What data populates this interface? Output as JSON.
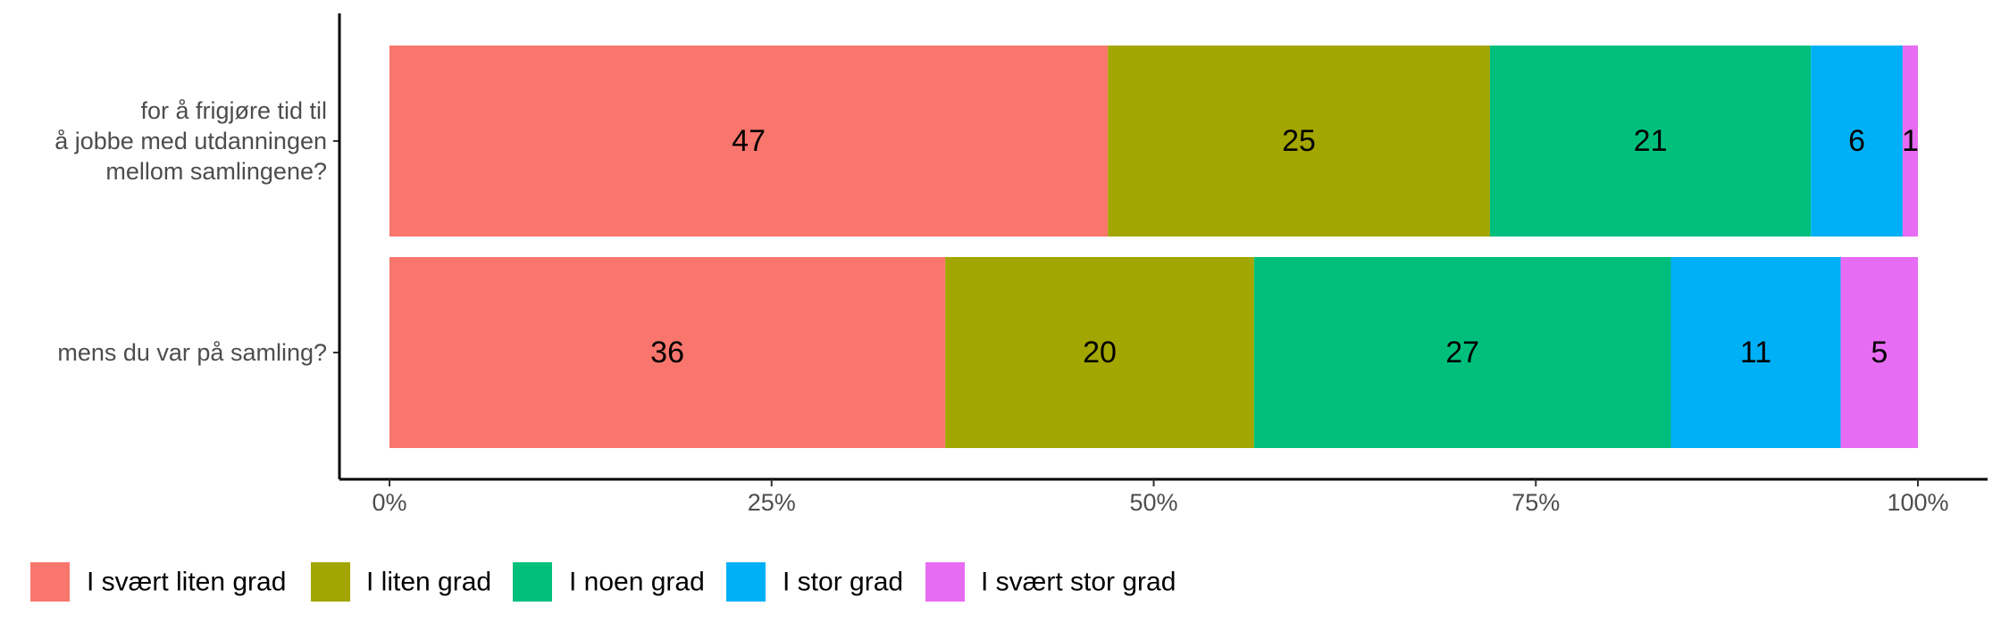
{
  "chart_data": {
    "type": "bar",
    "orientation": "horizontal",
    "stacked": true,
    "categories": [
      [
        "for å frigjøre tid til",
        "å jobbe med utdanningen",
        "mellom samlingene?"
      ],
      [
        "mens du var på samling?"
      ]
    ],
    "series": [
      {
        "name": "I svært liten grad",
        "color": "#F8766D",
        "values": [
          47,
          36
        ]
      },
      {
        "name": "I liten grad",
        "color": "#A3A500",
        "values": [
          25,
          20
        ]
      },
      {
        "name": "I noen grad",
        "color": "#00BF7D",
        "values": [
          21,
          27
        ]
      },
      {
        "name": "I stor grad",
        "color": "#00B0F6",
        "values": [
          6,
          11
        ]
      },
      {
        "name": "I svært stor grad",
        "color": "#E76BF3",
        "values": [
          1,
          5
        ]
      }
    ],
    "xlim": [
      0,
      100
    ],
    "xticks": [
      "0%",
      "25%",
      "50%",
      "75%",
      "100%"
    ],
    "xlabel": "",
    "ylabel": "",
    "title": "",
    "grid": false,
    "legend_position": "bottom"
  }
}
